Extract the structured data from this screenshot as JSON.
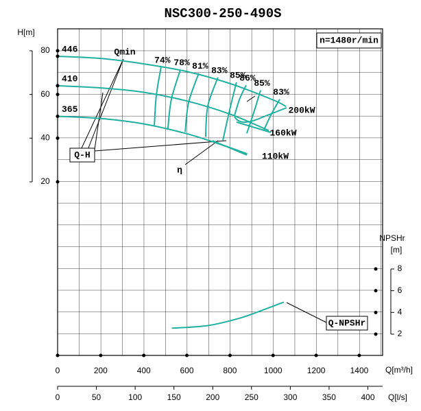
{
  "chart_data": {
    "type": "line",
    "title": "NSC300-250-490S",
    "speed_label": "n=1480r/min",
    "xlabel": "Q[m³/h]",
    "x2label": "Q[l/s]",
    "ylabel": "H[m]",
    "y2label": [
      "NPSHr",
      "[m]"
    ],
    "xlim": [
      0,
      1500
    ],
    "xticks": [
      0,
      200,
      400,
      600,
      800,
      1000,
      1200,
      1400
    ],
    "x2lim": [
      0,
      416.7
    ],
    "x2ticks": [
      0,
      50,
      100,
      150,
      200,
      250,
      300,
      350,
      400
    ],
    "ylim": [
      20,
      80
    ],
    "yticks": [
      20,
      40,
      60,
      80
    ],
    "y2lim": [
      2,
      8
    ],
    "y2ticks": [
      2,
      4,
      6,
      8
    ],
    "grid": true,
    "series": [
      {
        "name": "446",
        "color": "#1fb0a0",
        "x": [
          0,
          200,
          400,
          600,
          800,
          1000,
          1060
        ],
        "values": [
          77.5,
          76.5,
          74,
          70.5,
          65,
          57.5,
          54.5
        ]
      },
      {
        "name": "410",
        "color": "#1fb0a0",
        "x": [
          0,
          200,
          400,
          600,
          800,
          980
        ],
        "values": [
          64,
          63,
          61,
          57,
          51,
          43.5
        ]
      },
      {
        "name": "365",
        "color": "#1fb0a0",
        "x": [
          0,
          200,
          400,
          600,
          760,
          880
        ],
        "values": [
          50,
          49,
          46.5,
          42,
          37,
          32.8
        ]
      },
      {
        "name": "Q-NPSHr",
        "color": "#1fb0a0",
        "axis": "y2",
        "x": [
          530,
          700,
          850,
          950,
          1050
        ],
        "values": [
          2.55,
          2.8,
          3.5,
          4.2,
          4.95
        ]
      }
    ],
    "efficiency": [
      {
        "label": "74%",
        "x": [
          480,
          458,
          449
        ],
        "values": [
          72.5,
          59.4,
          45.9
        ]
      },
      {
        "label": "78%",
        "x": [
          570,
          528,
          512
        ],
        "values": [
          71.3,
          57.8,
          44.4
        ]
      },
      {
        "label": "81%",
        "x": [
          655,
          608,
          592
        ],
        "values": [
          69.7,
          56.3,
          42.8
        ]
      },
      {
        "label": "83%",
        "x": [
          744,
          697,
          687
        ],
        "values": [
          67.8,
          54.7,
          40.6
        ]
      },
      {
        "label": "85%",
        "x": [
          830,
          799,
          767
        ],
        "values": [
          65.6,
          53.1,
          39
        ]
      },
      {
        "label": "86%",
        "x": [
          875,
          845,
          820
        ],
        "values": [
          64.2,
          58,
          50
        ]
      },
      {
        "label": "85%",
        "x": [
          942,
          910,
          878
        ],
        "values": [
          61.9,
          51.6,
          42.2
        ]
      },
      {
        "label": "83%",
        "x": [
          1031,
          990,
          958
        ],
        "values": [
          57.8,
          50.6,
          43.8
        ]
      }
    ],
    "annotations": {
      "qmin": "Qmin",
      "qh": "Q-H",
      "eta": "η",
      "p110": "110kW",
      "p160": "160kW",
      "p200": "200kW"
    }
  }
}
